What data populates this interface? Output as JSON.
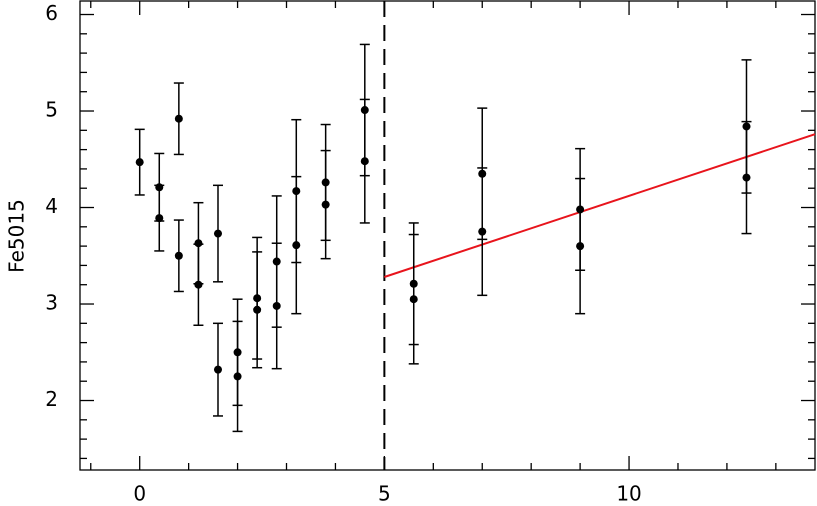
{
  "chart_data": {
    "type": "scatter",
    "ylabel": "Fe5015",
    "xlim": [
      -1.22,
      13.8
    ],
    "ylim": [
      1.28,
      6.14
    ],
    "xticks": [
      0,
      5,
      10
    ],
    "yticks": [
      2,
      3,
      4,
      5,
      6
    ],
    "xminorticks": [
      -1,
      1,
      2,
      3,
      4,
      6,
      7,
      8,
      9,
      11,
      12,
      13
    ],
    "yminorticks": [
      1.4,
      1.6,
      1.8,
      2.2,
      2.4,
      2.6,
      2.8,
      3.2,
      3.4,
      3.6,
      3.8,
      4.2,
      4.4,
      4.6,
      4.8,
      5.2,
      5.4,
      5.6,
      5.8
    ],
    "series": [
      {
        "color": "#000000",
        "x": [
          0,
          0.4,
          0.4,
          0.8,
          0.8,
          1.2,
          1.2,
          1.6,
          1.6,
          2.0,
          2.0,
          2.4,
          2.4,
          2.8,
          2.8,
          3.2,
          3.2,
          3.8,
          3.8,
          4.6,
          4.6,
          5.6,
          5.6,
          7,
          7,
          9,
          9,
          12.4,
          12.4
        ],
        "values": [
          4.47,
          4.21,
          3.89,
          4.92,
          3.5,
          3.63,
          3.2,
          3.73,
          2.32,
          2.5,
          2.25,
          3.06,
          2.94,
          3.44,
          2.98,
          4.17,
          3.61,
          4.26,
          4.03,
          5.01,
          4.48,
          3.21,
          3.05,
          4.35,
          3.75,
          3.98,
          3.6,
          4.84,
          4.31
        ],
        "errors": [
          0.34,
          0.35,
          0.34,
          0.37,
          0.37,
          0.42,
          0.42,
          0.5,
          0.48,
          0.55,
          0.57,
          0.63,
          0.6,
          0.68,
          0.65,
          0.74,
          0.71,
          0.6,
          0.56,
          0.68,
          0.64,
          0.63,
          0.67,
          0.68,
          0.66,
          0.63,
          0.7,
          0.69,
          0.58
        ]
      }
    ],
    "lines": [
      {
        "color": "#e8141c",
        "x": [
          5,
          13.8
        ],
        "y": [
          3.28,
          4.76
        ]
      }
    ],
    "vlines": [
      {
        "x": 5,
        "color": "#000000",
        "dashed": true
      }
    ]
  }
}
